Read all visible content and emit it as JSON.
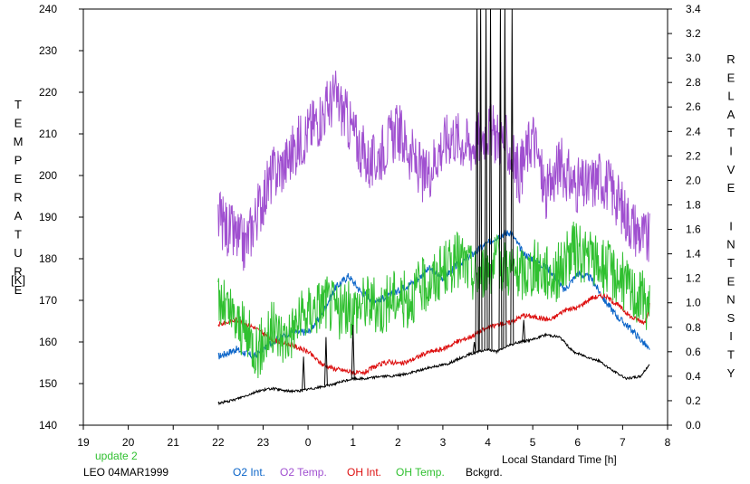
{
  "chart_data": {
    "type": "line",
    "status_text": "update 2",
    "station_label": "LEO 04MAR1999",
    "xlabel": "Local Standard Time [h]",
    "ylabel_left": "TEMPERATURE",
    "ylabel_left_unit": "[K]",
    "ylabel_right": "RELATIVE INTENSITY",
    "x_ticks": [
      "19",
      "20",
      "21",
      "22",
      "23",
      "0",
      "1",
      "2",
      "3",
      "4",
      "5",
      "6",
      "7",
      "8"
    ],
    "y_left_ticks": [
      "140",
      "150",
      "160",
      "170",
      "180",
      "190",
      "200",
      "210",
      "220",
      "230",
      "240"
    ],
    "y_right_ticks": [
      "0.0",
      "0.2",
      "0.4",
      "0.6",
      "0.8",
      "1.0",
      "1.2",
      "1.4",
      "1.6",
      "1.8",
      "2.0",
      "2.2",
      "2.4",
      "2.6",
      "2.8",
      "3.0",
      "3.2",
      "3.4"
    ],
    "xlim": [
      19,
      32
    ],
    "ylim_left": [
      140,
      240
    ],
    "ylim_right": [
      0,
      3.4
    ],
    "grid": false,
    "legend_position": "bottom",
    "series": [
      {
        "name": "O2 Int.",
        "axis": "right",
        "color": "#0a64c8",
        "x": [
          22.0,
          22.4,
          22.8,
          23.2,
          23.6,
          24.0,
          24.3,
          24.6,
          24.9,
          25.2,
          25.5,
          25.8,
          26.1,
          26.4,
          26.7,
          27.0,
          27.3,
          27.6,
          27.9,
          28.2,
          28.5,
          28.8,
          29.1,
          29.4,
          29.7,
          30.0,
          30.3,
          30.6,
          30.9,
          31.2,
          31.5,
          31.6
        ],
        "values": [
          0.56,
          0.62,
          0.56,
          0.68,
          0.76,
          0.76,
          0.9,
          1.12,
          1.22,
          1.08,
          1.02,
          1.05,
          1.12,
          1.18,
          1.28,
          1.2,
          1.3,
          1.38,
          1.46,
          1.54,
          1.58,
          1.4,
          1.34,
          1.26,
          1.1,
          1.24,
          1.2,
          1.02,
          0.88,
          0.78,
          0.66,
          0.6
        ]
      },
      {
        "name": "O2 Temp.",
        "axis": "left",
        "color": "#a050d0",
        "x": [
          22.0,
          22.3,
          22.6,
          22.9,
          23.2,
          23.5,
          23.8,
          24.1,
          24.4,
          24.6,
          24.8,
          25.1,
          25.4,
          25.7,
          26.0,
          26.3,
          26.6,
          26.9,
          27.2,
          27.6,
          28.0,
          28.4,
          28.7,
          29.0,
          29.3,
          29.6,
          29.9,
          30.2,
          30.5,
          30.8,
          31.1,
          31.4,
          31.6
        ],
        "values": [
          190,
          186,
          183,
          192,
          200,
          203,
          208,
          212,
          216,
          219,
          215,
          208,
          202,
          207,
          211,
          205,
          199,
          206,
          210,
          207,
          211,
          208,
          200,
          210,
          195,
          203,
          198,
          197,
          200,
          196,
          190,
          186,
          184
        ]
      },
      {
        "name": "OH Int.",
        "axis": "right",
        "color": "#dd1010",
        "x": [
          22.0,
          22.4,
          22.8,
          23.2,
          23.6,
          24.0,
          24.3,
          24.6,
          24.9,
          25.2,
          25.5,
          25.8,
          26.1,
          26.4,
          26.7,
          27.0,
          27.3,
          27.6,
          27.9,
          28.2,
          28.5,
          28.8,
          29.1,
          29.4,
          29.7,
          30.0,
          30.3,
          30.6,
          30.9,
          31.2,
          31.5,
          31.6
        ],
        "values": [
          0.82,
          0.86,
          0.8,
          0.7,
          0.66,
          0.6,
          0.5,
          0.46,
          0.44,
          0.42,
          0.48,
          0.52,
          0.5,
          0.55,
          0.6,
          0.62,
          0.68,
          0.72,
          0.78,
          0.82,
          0.84,
          0.9,
          0.88,
          0.86,
          0.94,
          0.96,
          1.04,
          1.06,
          0.98,
          0.88,
          0.84,
          0.98
        ]
      },
      {
        "name": "OH Temp.",
        "axis": "left",
        "color": "#30c030",
        "x": [
          22.0,
          22.3,
          22.6,
          22.9,
          23.2,
          23.5,
          23.8,
          24.1,
          24.4,
          24.7,
          25.0,
          25.3,
          25.6,
          25.9,
          26.2,
          26.5,
          26.8,
          27.1,
          27.4,
          27.7,
          28.0,
          28.3,
          28.7,
          29.1,
          29.5,
          29.9,
          30.3,
          30.6,
          30.9,
          31.2,
          31.5,
          31.6
        ],
        "values": [
          170,
          166,
          162,
          158,
          163,
          161,
          165,
          168,
          170,
          167,
          168,
          170,
          168,
          171,
          170,
          173,
          175,
          178,
          180,
          176,
          178,
          179,
          176,
          178,
          176,
          182,
          180,
          178,
          176,
          172,
          170,
          168
        ]
      },
      {
        "name": "Bckgrd.",
        "axis": "right",
        "color": "#000000",
        "x": [
          22.0,
          22.3,
          22.6,
          22.9,
          23.2,
          23.5,
          23.8,
          24.1,
          24.4,
          24.7,
          25.0,
          25.3,
          25.6,
          25.9,
          26.2,
          26.5,
          26.8,
          27.1,
          27.4,
          27.6,
          27.8,
          28.0,
          28.2,
          28.4,
          28.7,
          29.0,
          29.3,
          29.6,
          29.9,
          30.2,
          30.5,
          30.8,
          31.1,
          31.4,
          31.6
        ],
        "values": [
          0.18,
          0.2,
          0.24,
          0.28,
          0.3,
          0.28,
          0.28,
          0.3,
          0.32,
          0.35,
          0.38,
          0.38,
          0.4,
          0.4,
          0.42,
          0.45,
          0.48,
          0.5,
          0.55,
          0.58,
          0.6,
          0.62,
          0.6,
          0.64,
          0.68,
          0.7,
          0.74,
          0.72,
          0.6,
          0.56,
          0.52,
          0.44,
          0.38,
          0.4,
          0.5
        ]
      }
    ],
    "background_spikes": [
      {
        "x": 23.9,
        "value": 0.56
      },
      {
        "x": 24.4,
        "value": 0.72
      },
      {
        "x": 25.0,
        "value": 0.82
      },
      {
        "x": 27.7,
        "value": 0.68
      },
      {
        "x": 27.76,
        "value": 3.4
      },
      {
        "x": 27.84,
        "value": 3.4
      },
      {
        "x": 27.96,
        "value": 3.4
      },
      {
        "x": 28.06,
        "value": 3.4
      },
      {
        "x": 28.28,
        "value": 3.4
      },
      {
        "x": 28.38,
        "value": 3.4
      },
      {
        "x": 28.54,
        "value": 3.4
      },
      {
        "x": 28.8,
        "value": 0.86
      }
    ]
  }
}
